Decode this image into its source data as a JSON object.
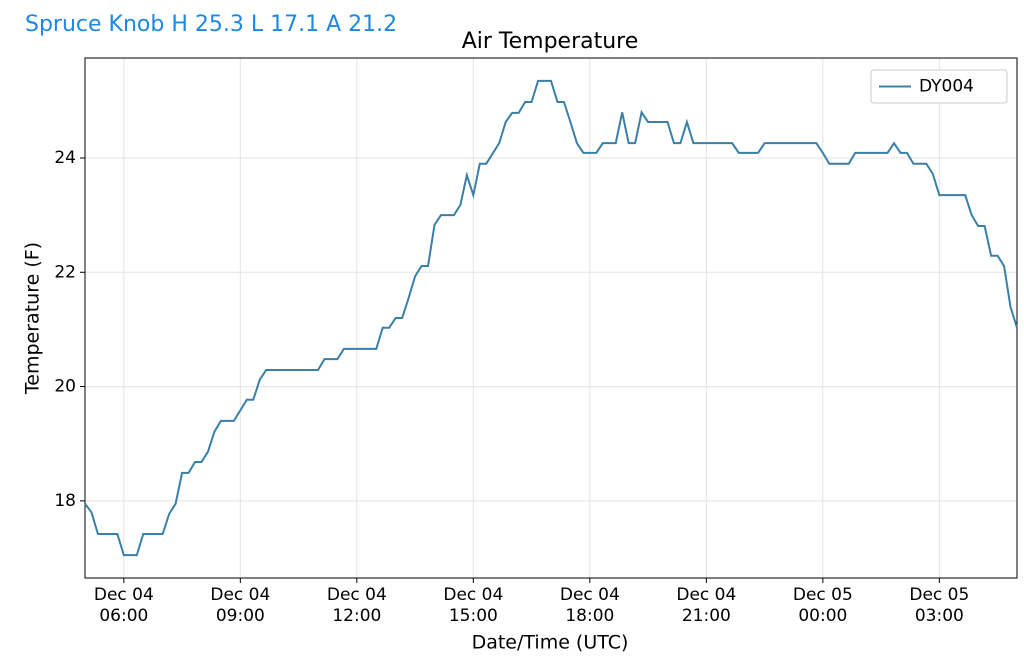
{
  "header": {
    "title": "Spruce Knob H 25.3 L 17.1 A 21.2"
  },
  "chart_data": {
    "type": "line",
    "title": "Air Temperature",
    "x_label": "Date/Time (UTC)",
    "y_label": "Temperature (F)",
    "xlim": [
      "Dec 04 05:00",
      "Dec 05 05:00"
    ],
    "xticks": [
      {
        "value": "Dec 04 06:00",
        "label": "Dec 04\n06:00"
      },
      {
        "value": "Dec 04 09:00",
        "label": "Dec 04\n09:00"
      },
      {
        "value": "Dec 04 12:00",
        "label": "Dec 04\n12:00"
      },
      {
        "value": "Dec 04 15:00",
        "label": "Dec 04\n15:00"
      },
      {
        "value": "Dec 04 18:00",
        "label": "Dec 04\n18:00"
      },
      {
        "value": "Dec 04 21:00",
        "label": "Dec 04\n21:00"
      },
      {
        "value": "Dec 05 00:00",
        "label": "Dec 05\n00:00"
      },
      {
        "value": "Dec 05 03:00",
        "label": "Dec 05\n03:00"
      }
    ],
    "ylim": [
      16.65,
      25.75
    ],
    "yticks": [
      18,
      20,
      22,
      24
    ],
    "grid": true,
    "legend": "upper right",
    "x": [
      "Dec 04 05:00",
      "Dec 04 05:10",
      "Dec 04 05:20",
      "Dec 04 05:50",
      "Dec 04 06:00",
      "Dec 04 06:20",
      "Dec 04 06:30",
      "Dec 04 07:00",
      "Dec 04 07:10",
      "Dec 04 07:20",
      "Dec 04 07:30",
      "Dec 04 07:40",
      "Dec 04 07:50",
      "Dec 04 08:00",
      "Dec 04 08:10",
      "Dec 04 08:20",
      "Dec 04 08:30",
      "Dec 04 08:50",
      "Dec 04 09:10",
      "Dec 04 09:20",
      "Dec 04 09:30",
      "Dec 04 09:40",
      "Dec 04 11:00",
      "Dec 04 11:10",
      "Dec 04 11:30",
      "Dec 04 11:40",
      "Dec 04 12:30",
      "Dec 04 12:40",
      "Dec 04 12:50",
      "Dec 04 13:00",
      "Dec 04 13:10",
      "Dec 04 13:20",
      "Dec 04 13:30",
      "Dec 04 13:40",
      "Dec 04 13:50",
      "Dec 04 14:00",
      "Dec 04 14:10",
      "Dec 04 14:30",
      "Dec 04 14:40",
      "Dec 04 14:50",
      "Dec 04 15:00",
      "Dec 04 15:10",
      "Dec 04 15:20",
      "Dec 04 15:40",
      "Dec 04 15:50",
      "Dec 04 16:00",
      "Dec 04 16:10",
      "Dec 04 16:20",
      "Dec 04 16:30",
      "Dec 04 16:40",
      "Dec 04 17:00",
      "Dec 04 17:10",
      "Dec 04 17:20",
      "Dec 04 17:30",
      "Dec 04 17:40",
      "Dec 04 17:50",
      "Dec 04 18:10",
      "Dec 04 18:20",
      "Dec 04 18:40",
      "Dec 04 18:50",
      "Dec 04 19:00",
      "Dec 04 19:10",
      "Dec 04 19:20",
      "Dec 04 19:30",
      "Dec 04 20:00",
      "Dec 04 20:10",
      "Dec 04 20:20",
      "Dec 04 20:30",
      "Dec 04 20:40",
      "Dec 04 21:40",
      "Dec 04 21:50",
      "Dec 04 22:20",
      "Dec 04 22:30",
      "Dec 04 23:50",
      "Dec 05 00:00",
      "Dec 05 00:10",
      "Dec 05 00:40",
      "Dec 05 00:50",
      "Dec 05 01:40",
      "Dec 05 01:50",
      "Dec 05 02:00",
      "Dec 05 02:10",
      "Dec 05 02:20",
      "Dec 05 02:40",
      "Dec 05 02:50",
      "Dec 05 03:00",
      "Dec 05 03:40",
      "Dec 05 03:50",
      "Dec 05 04:00",
      "Dec 05 04:10",
      "Dec 05 04:20",
      "Dec 05 04:30",
      "Dec 05 04:40",
      "Dec 05 04:50",
      "Dec 05 05:00"
    ],
    "series": [
      {
        "name": "DY004",
        "color": "#3a7fa8",
        "values": [
          17.95,
          17.8,
          17.42,
          17.42,
          17.05,
          17.05,
          17.42,
          17.42,
          17.77,
          17.95,
          18.49,
          18.49,
          18.68,
          18.68,
          18.86,
          19.21,
          19.4,
          19.4,
          19.77,
          19.77,
          20.12,
          20.29,
          20.29,
          20.48,
          20.48,
          20.66,
          20.66,
          21.03,
          21.03,
          21.2,
          21.2,
          21.55,
          21.93,
          22.11,
          22.11,
          22.83,
          23.0,
          23.0,
          23.18,
          23.7,
          23.35,
          23.9,
          23.9,
          24.26,
          24.63,
          24.79,
          24.79,
          24.98,
          24.98,
          25.35,
          25.35,
          24.98,
          24.98,
          24.63,
          24.26,
          24.09,
          24.09,
          24.26,
          24.26,
          24.8,
          24.26,
          24.26,
          24.8,
          24.63,
          24.63,
          24.26,
          24.26,
          24.63,
          24.26,
          24.26,
          24.09,
          24.09,
          24.26,
          24.26,
          24.09,
          23.9,
          23.9,
          24.09,
          24.09,
          24.26,
          24.09,
          24.09,
          23.9,
          23.9,
          23.72,
          23.35,
          23.35,
          23.0,
          22.81,
          22.81,
          22.29,
          22.29,
          22.11,
          21.39,
          21.03
        ]
      }
    ]
  }
}
